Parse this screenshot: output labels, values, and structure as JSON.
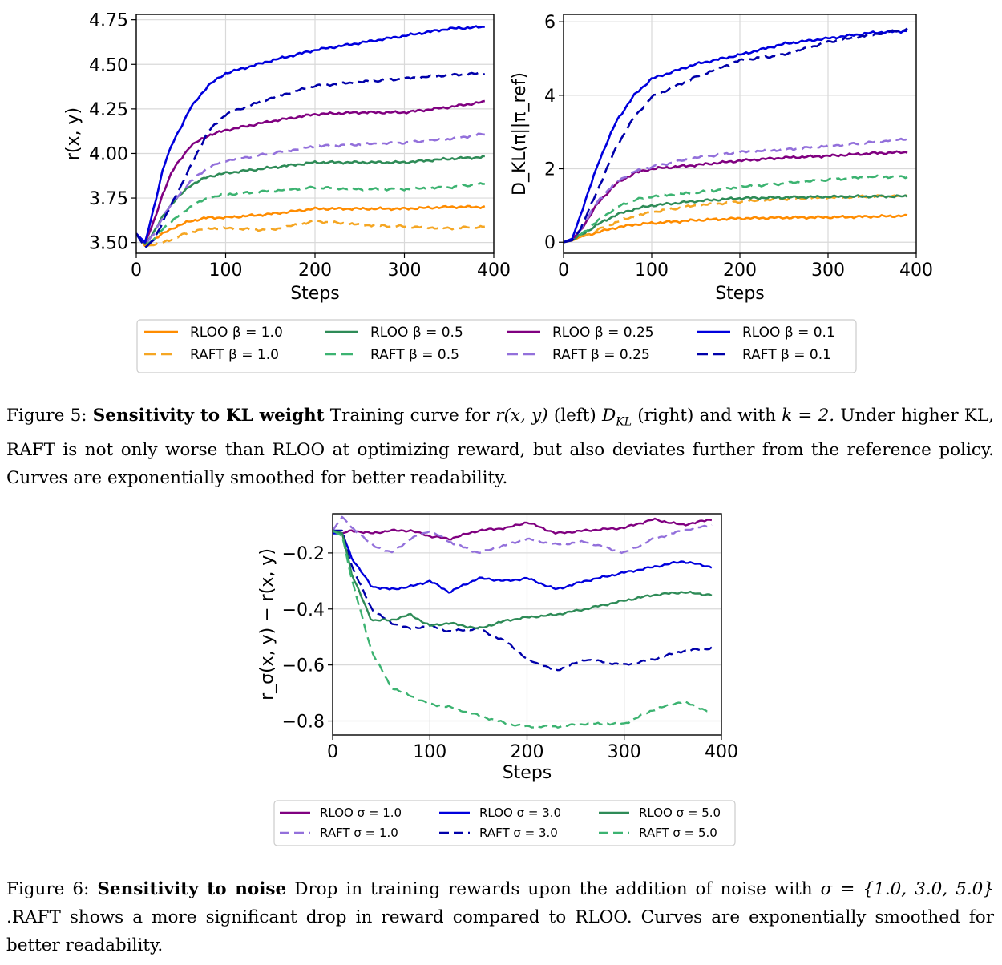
{
  "chart_data": [
    {
      "type": "line",
      "panel": "figure-5-left",
      "xlabel": "Steps",
      "ylabel": "r(x, y)",
      "xlim": [
        0,
        400
      ],
      "ylim": [
        3.44,
        4.78
      ],
      "xticks": [
        0,
        100,
        200,
        300,
        400
      ],
      "yticks": [
        3.5,
        3.75,
        4.0,
        4.25,
        4.5,
        4.75
      ],
      "ytick_labels": [
        "3.50",
        "3.75",
        "4.00",
        "4.25",
        "4.50",
        "4.75"
      ],
      "series": [
        {
          "name": "RLOO β = 1.0",
          "color": "#ff8c00",
          "dash": false,
          "x": [
            0,
            10,
            20,
            30,
            40,
            60,
            80,
            100,
            150,
            200,
            250,
            300,
            350,
            390
          ],
          "y": [
            3.55,
            3.48,
            3.52,
            3.55,
            3.58,
            3.62,
            3.64,
            3.64,
            3.66,
            3.69,
            3.69,
            3.69,
            3.7,
            3.7
          ]
        },
        {
          "name": "RAFT β = 1.0",
          "color": "#f5a623",
          "dash": true,
          "x": [
            0,
            10,
            20,
            30,
            40,
            60,
            80,
            100,
            150,
            200,
            250,
            300,
            350,
            390
          ],
          "y": [
            3.55,
            3.48,
            3.49,
            3.5,
            3.52,
            3.56,
            3.58,
            3.58,
            3.57,
            3.62,
            3.6,
            3.59,
            3.58,
            3.59
          ]
        },
        {
          "name": "RLOO β = 0.5",
          "color": "#2e8b57",
          "dash": false,
          "x": [
            0,
            10,
            20,
            30,
            40,
            60,
            80,
            100,
            150,
            200,
            250,
            300,
            350,
            390
          ],
          "y": [
            3.55,
            3.49,
            3.56,
            3.65,
            3.72,
            3.82,
            3.87,
            3.89,
            3.92,
            3.95,
            3.95,
            3.95,
            3.97,
            3.98
          ]
        },
        {
          "name": "RAFT β = 0.5",
          "color": "#3cb371",
          "dash": true,
          "x": [
            0,
            10,
            20,
            30,
            40,
            60,
            80,
            100,
            150,
            200,
            250,
            300,
            350,
            390
          ],
          "y": [
            3.55,
            3.48,
            3.52,
            3.58,
            3.62,
            3.7,
            3.75,
            3.77,
            3.79,
            3.81,
            3.8,
            3.8,
            3.81,
            3.83
          ]
        },
        {
          "name": "RLOO β = 0.25",
          "color": "#800080",
          "dash": false,
          "x": [
            0,
            10,
            20,
            30,
            40,
            60,
            80,
            100,
            150,
            200,
            250,
            300,
            350,
            390
          ],
          "y": [
            3.55,
            3.5,
            3.62,
            3.78,
            3.9,
            4.04,
            4.1,
            4.13,
            4.18,
            4.22,
            4.23,
            4.23,
            4.26,
            4.29
          ]
        },
        {
          "name": "RAFT β = 0.25",
          "color": "#9370db",
          "dash": true,
          "x": [
            0,
            10,
            20,
            30,
            40,
            60,
            80,
            100,
            150,
            200,
            250,
            300,
            350,
            390
          ],
          "y": [
            3.55,
            3.49,
            3.55,
            3.65,
            3.72,
            3.84,
            3.92,
            3.96,
            4.0,
            4.04,
            4.05,
            4.06,
            4.08,
            4.11
          ]
        },
        {
          "name": "RLOO β = 0.1",
          "color": "#0000dd",
          "dash": false,
          "x": [
            0,
            10,
            20,
            30,
            40,
            60,
            80,
            100,
            150,
            200,
            250,
            300,
            350,
            390
          ],
          "y": [
            3.55,
            3.5,
            3.7,
            3.92,
            4.05,
            4.25,
            4.38,
            4.45,
            4.52,
            4.58,
            4.62,
            4.66,
            4.7,
            4.71
          ]
        },
        {
          "name": "RAFT β = 0.1",
          "color": "#0000aa",
          "dash": true,
          "x": [
            0,
            10,
            20,
            30,
            40,
            60,
            80,
            100,
            150,
            200,
            250,
            300,
            350,
            390
          ],
          "y": [
            3.55,
            3.47,
            3.52,
            3.62,
            3.72,
            3.92,
            4.12,
            4.22,
            4.31,
            4.38,
            4.4,
            4.42,
            4.44,
            4.45
          ]
        }
      ]
    },
    {
      "type": "line",
      "panel": "figure-5-right",
      "xlabel": "Steps",
      "ylabel": "D_KL(π||π_ref)",
      "xlim": [
        0,
        400
      ],
      "ylim": [
        -0.3,
        6.2
      ],
      "xticks": [
        0,
        100,
        200,
        300,
        400
      ],
      "yticks": [
        0,
        2,
        4,
        6
      ],
      "ytick_labels": [
        "0",
        "2",
        "4",
        "6"
      ],
      "series": [
        {
          "name": "RLOO β = 1.0",
          "color": "#ff8c00",
          "dash": false,
          "x": [
            0,
            10,
            20,
            40,
            60,
            80,
            100,
            150,
            200,
            250,
            300,
            350,
            390
          ],
          "y": [
            0,
            0.05,
            0.15,
            0.28,
            0.4,
            0.48,
            0.52,
            0.6,
            0.65,
            0.67,
            0.68,
            0.7,
            0.72
          ]
        },
        {
          "name": "RAFT β = 1.0",
          "color": "#f5a623",
          "dash": true,
          "x": [
            0,
            10,
            20,
            40,
            60,
            80,
            100,
            150,
            200,
            250,
            300,
            350,
            390
          ],
          "y": [
            0,
            0.05,
            0.15,
            0.35,
            0.55,
            0.7,
            0.82,
            1.0,
            1.1,
            1.18,
            1.22,
            1.25,
            1.28
          ]
        },
        {
          "name": "RLOO β = 0.5",
          "color": "#2e8b57",
          "dash": false,
          "x": [
            0,
            10,
            20,
            40,
            60,
            80,
            100,
            150,
            200,
            250,
            300,
            350,
            390
          ],
          "y": [
            0,
            0.06,
            0.2,
            0.5,
            0.75,
            0.9,
            1.0,
            1.12,
            1.2,
            1.22,
            1.24,
            1.25,
            1.25
          ]
        },
        {
          "name": "RAFT β = 0.5",
          "color": "#3cb371",
          "dash": true,
          "x": [
            0,
            10,
            20,
            40,
            60,
            80,
            100,
            150,
            200,
            250,
            300,
            350,
            390
          ],
          "y": [
            0,
            0.06,
            0.22,
            0.6,
            0.95,
            1.15,
            1.25,
            1.35,
            1.5,
            1.6,
            1.7,
            1.78,
            1.78
          ]
        },
        {
          "name": "RLOO β = 0.25",
          "color": "#800080",
          "dash": false,
          "x": [
            0,
            10,
            20,
            40,
            60,
            80,
            100,
            150,
            200,
            250,
            300,
            350,
            390
          ],
          "y": [
            0,
            0.08,
            0.35,
            1.1,
            1.6,
            1.88,
            2.0,
            2.1,
            2.22,
            2.3,
            2.35,
            2.42,
            2.45
          ]
        },
        {
          "name": "RAFT β = 0.25",
          "color": "#9370db",
          "dash": true,
          "x": [
            0,
            10,
            20,
            40,
            60,
            80,
            100,
            150,
            200,
            250,
            300,
            350,
            390
          ],
          "y": [
            0,
            0.08,
            0.38,
            1.15,
            1.65,
            1.92,
            2.05,
            2.3,
            2.45,
            2.52,
            2.62,
            2.72,
            2.82
          ]
        },
        {
          "name": "RLOO β = 0.1",
          "color": "#0000dd",
          "dash": false,
          "x": [
            0,
            10,
            20,
            40,
            60,
            80,
            100,
            150,
            200,
            250,
            300,
            350,
            390
          ],
          "y": [
            0,
            0.1,
            0.8,
            2.2,
            3.3,
            4.0,
            4.45,
            4.85,
            5.1,
            5.4,
            5.55,
            5.7,
            5.75
          ]
        },
        {
          "name": "RAFT β = 0.1",
          "color": "#0000aa",
          "dash": true,
          "x": [
            0,
            10,
            20,
            40,
            60,
            80,
            100,
            150,
            200,
            250,
            300,
            350,
            390
          ],
          "y": [
            0,
            0.05,
            0.4,
            1.5,
            2.6,
            3.4,
            3.95,
            4.5,
            4.95,
            5.1,
            5.45,
            5.65,
            5.8
          ]
        }
      ]
    },
    {
      "type": "line",
      "panel": "figure-6",
      "xlabel": "Steps",
      "ylabel": "r_σ(x, y) − r(x, y)",
      "xlim": [
        0,
        400
      ],
      "ylim": [
        -0.85,
        -0.06
      ],
      "xticks": [
        0,
        100,
        200,
        300,
        400
      ],
      "yticks": [
        -0.8,
        -0.6,
        -0.4,
        -0.2
      ],
      "ytick_labels": [
        "−0.8",
        "−0.6",
        "−0.4",
        "−0.2"
      ],
      "series": [
        {
          "name": "RLOO σ = 1.0",
          "color": "#800080",
          "dash": false,
          "x": [
            0,
            10,
            20,
            40,
            60,
            80,
            100,
            120,
            150,
            180,
            200,
            230,
            260,
            300,
            330,
            360,
            390
          ],
          "y": [
            -0.12,
            -0.13,
            -0.12,
            -0.13,
            -0.12,
            -0.12,
            -0.14,
            -0.15,
            -0.12,
            -0.11,
            -0.09,
            -0.13,
            -0.12,
            -0.11,
            -0.08,
            -0.1,
            -0.08
          ]
        },
        {
          "name": "RAFT σ = 1.0",
          "color": "#9370db",
          "dash": true,
          "x": [
            0,
            10,
            20,
            40,
            60,
            80,
            100,
            120,
            150,
            180,
            200,
            230,
            260,
            300,
            330,
            360,
            390
          ],
          "y": [
            -0.12,
            -0.07,
            -0.11,
            -0.17,
            -0.2,
            -0.15,
            -0.12,
            -0.16,
            -0.2,
            -0.17,
            -0.15,
            -0.17,
            -0.16,
            -0.2,
            -0.15,
            -0.12,
            -0.1
          ]
        },
        {
          "name": "RLOO σ = 3.0",
          "color": "#0000dd",
          "dash": false,
          "x": [
            0,
            10,
            20,
            40,
            60,
            80,
            100,
            120,
            150,
            180,
            200,
            230,
            260,
            300,
            330,
            360,
            390
          ],
          "y": [
            -0.13,
            -0.13,
            -0.22,
            -0.32,
            -0.33,
            -0.32,
            -0.3,
            -0.34,
            -0.29,
            -0.3,
            -0.29,
            -0.33,
            -0.3,
            -0.27,
            -0.25,
            -0.23,
            -0.25
          ]
        },
        {
          "name": "RAFT σ = 3.0",
          "color": "#0000aa",
          "dash": true,
          "x": [
            0,
            10,
            20,
            40,
            60,
            80,
            100,
            120,
            150,
            180,
            200,
            230,
            260,
            300,
            330,
            360,
            390
          ],
          "y": [
            -0.12,
            -0.12,
            -0.25,
            -0.4,
            -0.45,
            -0.47,
            -0.46,
            -0.48,
            -0.47,
            -0.52,
            -0.58,
            -0.62,
            -0.58,
            -0.6,
            -0.58,
            -0.55,
            -0.54
          ]
        },
        {
          "name": "RLOO σ = 5.0",
          "color": "#2e8b57",
          "dash": false,
          "x": [
            0,
            10,
            20,
            40,
            60,
            80,
            100,
            120,
            150,
            180,
            200,
            230,
            260,
            300,
            330,
            360,
            390
          ],
          "y": [
            -0.12,
            -0.13,
            -0.28,
            -0.44,
            -0.44,
            -0.42,
            -0.46,
            -0.45,
            -0.47,
            -0.44,
            -0.43,
            -0.42,
            -0.4,
            -0.37,
            -0.35,
            -0.34,
            -0.35
          ]
        },
        {
          "name": "RAFT σ = 5.0",
          "color": "#3cb371",
          "dash": true,
          "x": [
            0,
            10,
            20,
            40,
            60,
            80,
            100,
            120,
            150,
            180,
            200,
            230,
            260,
            300,
            330,
            360,
            390
          ],
          "y": [
            -0.12,
            -0.14,
            -0.3,
            -0.55,
            -0.68,
            -0.71,
            -0.74,
            -0.75,
            -0.78,
            -0.81,
            -0.82,
            -0.82,
            -0.81,
            -0.81,
            -0.76,
            -0.73,
            -0.77
          ]
        }
      ]
    }
  ],
  "figure5": {
    "caption_label": "Figure 5:",
    "caption_title": "Sensitivity to KL weight",
    "caption_text_1": "Training curve for",
    "caption_math_r": "r(x, y)",
    "caption_text_2": "(left)",
    "caption_math_dkl": "D",
    "caption_math_dkl_sub": "KL",
    "caption_text_3": "(right) and with",
    "caption_math_k": "k = 2.",
    "caption_text_4": "Under higher KL, RAFT is not only worse than RLOO at optimizing reward, but also deviates further from the reference policy. Curves are exponentially smoothed for better readability.",
    "legend": [
      [
        "RLOO  β = 1.0",
        "RAFT  β = 1.0"
      ],
      [
        "RLOO  β = 0.5",
        "RAFT  β = 0.5"
      ],
      [
        "RLOO  β = 0.25",
        "RAFT  β = 0.25"
      ],
      [
        "RLOO  β = 0.1",
        "RAFT  β = 0.1"
      ]
    ]
  },
  "figure6": {
    "caption_label": "Figure 6:",
    "caption_title": "Sensitivity to noise",
    "caption_text_1": "Drop in training rewards upon the addition of noise with",
    "caption_math_sigma": "σ = {1.0, 3.0, 5.0}",
    "caption_text_2": ".RAFT shows a more significant drop in reward compared to RLOO. Curves are exponentially smoothed for better readability.",
    "legend": [
      [
        "RLOO σ = 1.0",
        "RAFT σ = 1.0"
      ],
      [
        "RLOO σ = 3.0",
        "RAFT σ = 3.0"
      ],
      [
        "RLOO σ = 5.0",
        "RAFT σ = 5.0"
      ]
    ]
  }
}
